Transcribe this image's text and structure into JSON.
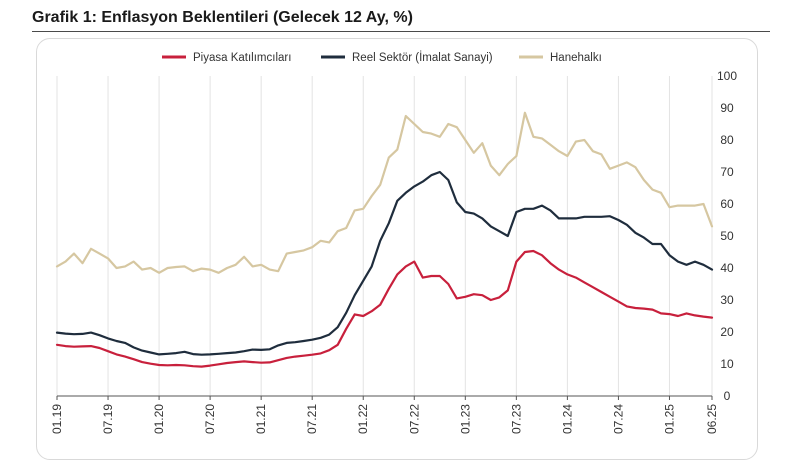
{
  "title": "Grafik 1: Enflasyon Beklentileri (Gelecek 12 Ay, %)",
  "chart_data": {
    "type": "line",
    "title": "Grafik 1: Enflasyon Beklentileri (Gelecek 12 Ay, %)",
    "xlabel": "",
    "ylabel": "",
    "ylim": [
      0,
      100
    ],
    "yticks": [
      0,
      10,
      20,
      30,
      40,
      50,
      60,
      70,
      80,
      90,
      100
    ],
    "y_axis_side": "right",
    "x_ticks": [
      "01.19",
      "07.19",
      "01.20",
      "07.20",
      "01.21",
      "07.21",
      "01.22",
      "07.22",
      "01.23",
      "07.23",
      "01.24",
      "07.24",
      "01.25",
      "06.25"
    ],
    "x": [
      "01.19",
      "02.19",
      "03.19",
      "04.19",
      "05.19",
      "06.19",
      "07.19",
      "08.19",
      "09.19",
      "10.19",
      "11.19",
      "12.19",
      "01.20",
      "02.20",
      "03.20",
      "04.20",
      "05.20",
      "06.20",
      "07.20",
      "08.20",
      "09.20",
      "10.20",
      "11.20",
      "12.20",
      "01.21",
      "02.21",
      "03.21",
      "04.21",
      "05.21",
      "06.21",
      "07.21",
      "08.21",
      "09.21",
      "10.21",
      "11.21",
      "12.21",
      "01.22",
      "02.22",
      "03.22",
      "04.22",
      "05.22",
      "06.22",
      "07.22",
      "08.22",
      "09.22",
      "10.22",
      "11.22",
      "12.22",
      "01.23",
      "02.23",
      "03.23",
      "04.23",
      "05.23",
      "06.23",
      "07.23",
      "08.23",
      "09.23",
      "10.23",
      "11.23",
      "12.23",
      "01.24",
      "02.24",
      "03.24",
      "04.24",
      "05.24",
      "06.24",
      "07.24",
      "08.24",
      "09.24",
      "10.24",
      "11.24",
      "12.24",
      "01.25",
      "02.25",
      "03.25",
      "04.25",
      "05.25",
      "06.25"
    ],
    "grid": "vertical",
    "legend_position": "top",
    "series": [
      {
        "name": "Piyasa Katılımcıları",
        "color": "#c8203c",
        "values": [
          16.0,
          15.6,
          15.4,
          15.5,
          15.6,
          15.0,
          14.0,
          13.0,
          12.3,
          11.5,
          10.6,
          10.1,
          9.7,
          9.6,
          9.7,
          9.6,
          9.3,
          9.2,
          9.5,
          9.9,
          10.3,
          10.6,
          10.8,
          10.6,
          10.4,
          10.5,
          11.2,
          11.9,
          12.3,
          12.6,
          12.9,
          13.3,
          14.3,
          16.0,
          21.0,
          25.5,
          25.0,
          26.5,
          28.5,
          33.5,
          38.0,
          40.5,
          42.0,
          37.0,
          37.5,
          37.5,
          35.0,
          30.5,
          31.0,
          31.8,
          31.5,
          30.0,
          30.8,
          33.0,
          42.0,
          45.0,
          45.3,
          44.0,
          41.5,
          39.5,
          38.0,
          37.0,
          35.5,
          34.0,
          32.5,
          31.0,
          29.5,
          28.0,
          27.5,
          27.3,
          27.0,
          25.8,
          25.6,
          25.0,
          25.8,
          25.2,
          24.8,
          24.5
        ]
      },
      {
        "name": "Reel Sektör (İmalat Sanayi)",
        "color": "#1f2d3d",
        "values": [
          19.8,
          19.5,
          19.3,
          19.4,
          19.8,
          19.0,
          18.0,
          17.2,
          16.6,
          15.2,
          14.2,
          13.6,
          13.0,
          13.2,
          13.4,
          13.8,
          13.1,
          12.9,
          13.0,
          13.2,
          13.4,
          13.6,
          14.0,
          14.5,
          14.4,
          14.6,
          15.8,
          16.6,
          16.8,
          17.2,
          17.6,
          18.2,
          19.2,
          21.5,
          26.0,
          31.5,
          36.0,
          40.5,
          48.5,
          54.0,
          61.0,
          63.5,
          65.5,
          67.0,
          69.0,
          70.0,
          67.5,
          60.5,
          57.5,
          57.0,
          55.5,
          53.0,
          51.5,
          50.0,
          57.5,
          58.5,
          58.5,
          59.5,
          58.0,
          55.5,
          55.5,
          55.5,
          56.0,
          56.0,
          56.0,
          56.2,
          55.0,
          53.5,
          51.0,
          49.5,
          47.5,
          47.5,
          44.0,
          42.0,
          41.0,
          42.0,
          41.0,
          39.5
        ]
      },
      {
        "name": "Hanehalkı",
        "color": "#d6c7a1",
        "values": [
          40.5,
          42.0,
          44.5,
          41.5,
          46.0,
          44.5,
          43.0,
          40.0,
          40.5,
          42.0,
          39.5,
          40.0,
          38.5,
          40.0,
          40.3,
          40.5,
          39.0,
          39.8,
          39.5,
          38.5,
          40.0,
          41.0,
          43.5,
          40.5,
          41.0,
          39.5,
          39.0,
          44.5,
          45.0,
          45.5,
          46.5,
          48.5,
          48.0,
          51.5,
          52.5,
          58.0,
          58.5,
          62.5,
          66.0,
          74.5,
          77.0,
          87.5,
          85.0,
          82.5,
          82.0,
          81.0,
          85.0,
          84.0,
          80.0,
          76.0,
          79.0,
          72.0,
          69.0,
          72.5,
          75.0,
          88.5,
          81.0,
          80.5,
          78.5,
          76.5,
          75.0,
          79.5,
          80.0,
          76.5,
          75.5,
          71.0,
          72.0,
          73.0,
          71.5,
          67.5,
          64.5,
          63.5,
          59.0,
          59.5,
          59.5,
          59.5,
          60.0,
          53.0
        ]
      }
    ]
  }
}
